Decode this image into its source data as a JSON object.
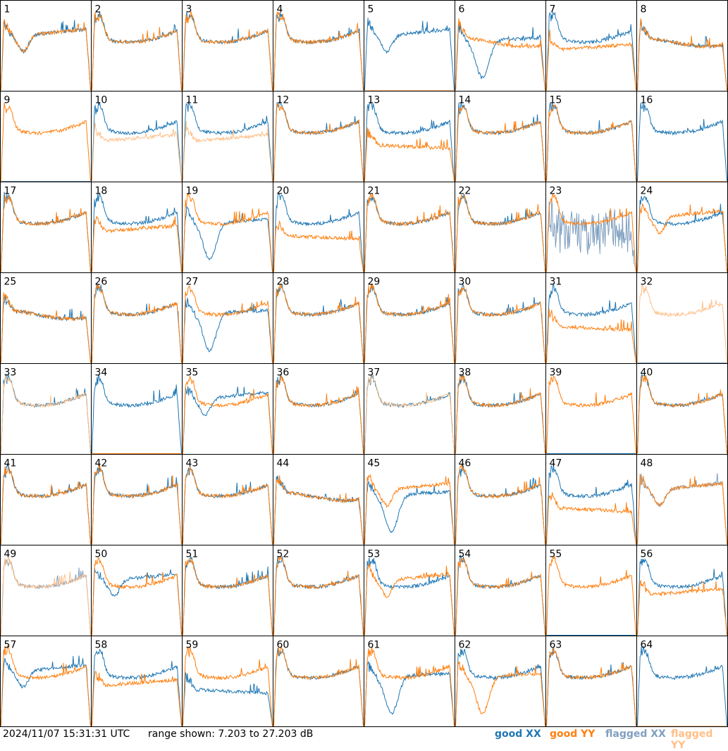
{
  "timestamp": "2024/11/07 15:31:31 UTC",
  "range_text": "range shown: 7.203 to 27.203 dB",
  "legend": [
    {
      "label": "good XX",
      "color": "#1f77b4"
    },
    {
      "label": "good YY",
      "color": "#ff7f0e"
    },
    {
      "label": "flagged XX",
      "color": "#7f9fbf"
    },
    {
      "label": "flagged YY",
      "color": "#ffbf87"
    }
  ],
  "chart_data": {
    "type": "line",
    "ylim_db": [
      7.203,
      27.203
    ],
    "panels": [
      {
        "id": "1",
        "xx": "good",
        "yy": "good",
        "shape_xx": "dip",
        "shape_yy": "dip"
      },
      {
        "id": "2",
        "xx": "good",
        "yy": "good",
        "shape_xx": "normal",
        "shape_yy": "normal"
      },
      {
        "id": "3",
        "xx": "good",
        "yy": "good",
        "shape_xx": "normal",
        "shape_yy": "normal"
      },
      {
        "id": "4",
        "xx": "good",
        "yy": "good",
        "shape_xx": "normal",
        "shape_yy": "normal"
      },
      {
        "id": "5",
        "xx": "good",
        "yy": "flagged",
        "shape_xx": "dip",
        "shape_yy": "zero"
      },
      {
        "id": "6",
        "xx": "good",
        "yy": "good",
        "shape_xx": "deepdip",
        "shape_yy": "flat"
      },
      {
        "id": "7",
        "xx": "good",
        "yy": "good",
        "shape_xx": "normal",
        "shape_yy": "low"
      },
      {
        "id": "8",
        "xx": "good",
        "yy": "good",
        "shape_xx": "flat",
        "shape_yy": "flat"
      },
      {
        "id": "9",
        "xx": "flagged",
        "yy": "good",
        "shape_xx": "zero",
        "shape_yy": "normal"
      },
      {
        "id": "10",
        "xx": "good",
        "yy": "flagged",
        "shape_xx": "normal",
        "shape_yy": "low"
      },
      {
        "id": "11",
        "xx": "good",
        "yy": "flagged",
        "shape_xx": "normal",
        "shape_yy": "low"
      },
      {
        "id": "12",
        "xx": "good",
        "yy": "good",
        "shape_xx": "normal",
        "shape_yy": "normal"
      },
      {
        "id": "13",
        "xx": "good",
        "yy": "good",
        "shape_xx": "normal",
        "shape_yy": "droop"
      },
      {
        "id": "14",
        "xx": "good",
        "yy": "good",
        "shape_xx": "normal",
        "shape_yy": "normal"
      },
      {
        "id": "15",
        "xx": "good",
        "yy": "good",
        "shape_xx": "normal",
        "shape_yy": "normal"
      },
      {
        "id": "16",
        "xx": "good",
        "yy": "flagged",
        "shape_xx": "normal",
        "shape_yy": "zero"
      },
      {
        "id": "17",
        "xx": "good",
        "yy": "good",
        "shape_xx": "normal",
        "shape_yy": "normal"
      },
      {
        "id": "18",
        "xx": "good",
        "yy": "good",
        "shape_xx": "normal",
        "shape_yy": "low"
      },
      {
        "id": "19",
        "xx": "good",
        "yy": "good",
        "shape_xx": "deepdip",
        "shape_yy": "normal"
      },
      {
        "id": "20",
        "xx": "good",
        "yy": "good",
        "shape_xx": "normal",
        "shape_yy": "droop"
      },
      {
        "id": "21",
        "xx": "good",
        "yy": "good",
        "shape_xx": "normal",
        "shape_yy": "normal"
      },
      {
        "id": "22",
        "xx": "good",
        "yy": "good",
        "shape_xx": "normal",
        "shape_yy": "normal"
      },
      {
        "id": "23",
        "xx": "flagged",
        "yy": "good",
        "shape_xx": "noisy",
        "shape_yy": "normal"
      },
      {
        "id": "24",
        "xx": "good",
        "yy": "good",
        "shape_xx": "normal",
        "shape_yy": "dip"
      },
      {
        "id": "25",
        "xx": "good",
        "yy": "good",
        "shape_xx": "flat",
        "shape_yy": "flat"
      },
      {
        "id": "26",
        "xx": "good",
        "yy": "good",
        "shape_xx": "normal",
        "shape_yy": "normal"
      },
      {
        "id": "27",
        "xx": "good",
        "yy": "good",
        "shape_xx": "deepdip",
        "shape_yy": "normal"
      },
      {
        "id": "28",
        "xx": "good",
        "yy": "good",
        "shape_xx": "normal",
        "shape_yy": "normal"
      },
      {
        "id": "29",
        "xx": "good",
        "yy": "good",
        "shape_xx": "normal",
        "shape_yy": "normal"
      },
      {
        "id": "30",
        "xx": "good",
        "yy": "good",
        "shape_xx": "normal",
        "shape_yy": "normal"
      },
      {
        "id": "31",
        "xx": "good",
        "yy": "good",
        "shape_xx": "normal",
        "shape_yy": "droop"
      },
      {
        "id": "32",
        "xx": "flagged",
        "yy": "flagged",
        "shape_xx": "zero",
        "shape_yy": "normal"
      },
      {
        "id": "33",
        "xx": "good",
        "yy": "flagged",
        "shape_xx": "normal",
        "shape_yy": "normal"
      },
      {
        "id": "34",
        "xx": "good",
        "yy": "good",
        "shape_xx": "normal",
        "shape_yy": "zero"
      },
      {
        "id": "35",
        "xx": "good",
        "yy": "good",
        "shape_xx": "dip",
        "shape_yy": "normal"
      },
      {
        "id": "36",
        "xx": "good",
        "yy": "good",
        "shape_xx": "normal",
        "shape_yy": "normal"
      },
      {
        "id": "37",
        "xx": "good",
        "yy": "flagged",
        "shape_xx": "normal",
        "shape_yy": "normal"
      },
      {
        "id": "38",
        "xx": "good",
        "yy": "good",
        "shape_xx": "normal",
        "shape_yy": "normal"
      },
      {
        "id": "39",
        "xx": "good",
        "yy": "good",
        "shape_xx": "zero",
        "shape_yy": "normal"
      },
      {
        "id": "40",
        "xx": "good",
        "yy": "good",
        "shape_xx": "normal",
        "shape_yy": "normal"
      },
      {
        "id": "41",
        "xx": "good",
        "yy": "good",
        "shape_xx": "normal",
        "shape_yy": "normal"
      },
      {
        "id": "42",
        "xx": "good",
        "yy": "good",
        "shape_xx": "normal",
        "shape_yy": "normal"
      },
      {
        "id": "43",
        "xx": "good",
        "yy": "good",
        "shape_xx": "normal",
        "shape_yy": "normal"
      },
      {
        "id": "44",
        "xx": "good",
        "yy": "good",
        "shape_xx": "flat",
        "shape_yy": "flat"
      },
      {
        "id": "45",
        "xx": "good",
        "yy": "good",
        "shape_xx": "deepdip",
        "shape_yy": "dip"
      },
      {
        "id": "46",
        "xx": "good",
        "yy": "good",
        "shape_xx": "normal",
        "shape_yy": "normal"
      },
      {
        "id": "47",
        "xx": "good",
        "yy": "good",
        "shape_xx": "normal",
        "shape_yy": "droop"
      },
      {
        "id": "48",
        "xx": "flagged",
        "yy": "good",
        "shape_xx": "dip",
        "shape_yy": "dip"
      },
      {
        "id": "49",
        "xx": "flagged",
        "yy": "flagged",
        "shape_xx": "normal",
        "shape_yy": "normal"
      },
      {
        "id": "50",
        "xx": "good",
        "yy": "good",
        "shape_xx": "dip",
        "shape_yy": "normal"
      },
      {
        "id": "51",
        "xx": "good",
        "yy": "good",
        "shape_xx": "normal",
        "shape_yy": "normal"
      },
      {
        "id": "52",
        "xx": "good",
        "yy": "good",
        "shape_xx": "normal",
        "shape_yy": "normal"
      },
      {
        "id": "53",
        "xx": "good",
        "yy": "good",
        "shape_xx": "normal",
        "shape_yy": "dip"
      },
      {
        "id": "54",
        "xx": "good",
        "yy": "good",
        "shape_xx": "normal",
        "shape_yy": "normal"
      },
      {
        "id": "55",
        "xx": "good",
        "yy": "good",
        "shape_xx": "zero",
        "shape_yy": "normal"
      },
      {
        "id": "56",
        "xx": "good",
        "yy": "good",
        "shape_xx": "normal",
        "shape_yy": "low"
      },
      {
        "id": "57",
        "xx": "good",
        "yy": "good",
        "shape_xx": "dip",
        "shape_yy": "normal"
      },
      {
        "id": "58",
        "xx": "good",
        "yy": "good",
        "shape_xx": "normal",
        "shape_yy": "low"
      },
      {
        "id": "59",
        "xx": "good",
        "yy": "good",
        "shape_xx": "droop",
        "shape_yy": "normal"
      },
      {
        "id": "60",
        "xx": "good",
        "yy": "good",
        "shape_xx": "normal",
        "shape_yy": "normal"
      },
      {
        "id": "61",
        "xx": "good",
        "yy": "good",
        "shape_xx": "deepdip",
        "shape_yy": "normal"
      },
      {
        "id": "62",
        "xx": "good",
        "yy": "good",
        "shape_xx": "normal",
        "shape_yy": "deepdip"
      },
      {
        "id": "63",
        "xx": "good",
        "yy": "good",
        "shape_xx": "normal",
        "shape_yy": "normal"
      },
      {
        "id": "64",
        "xx": "good",
        "yy": "flagged",
        "shape_xx": "normal",
        "shape_yy": "zero"
      }
    ]
  }
}
